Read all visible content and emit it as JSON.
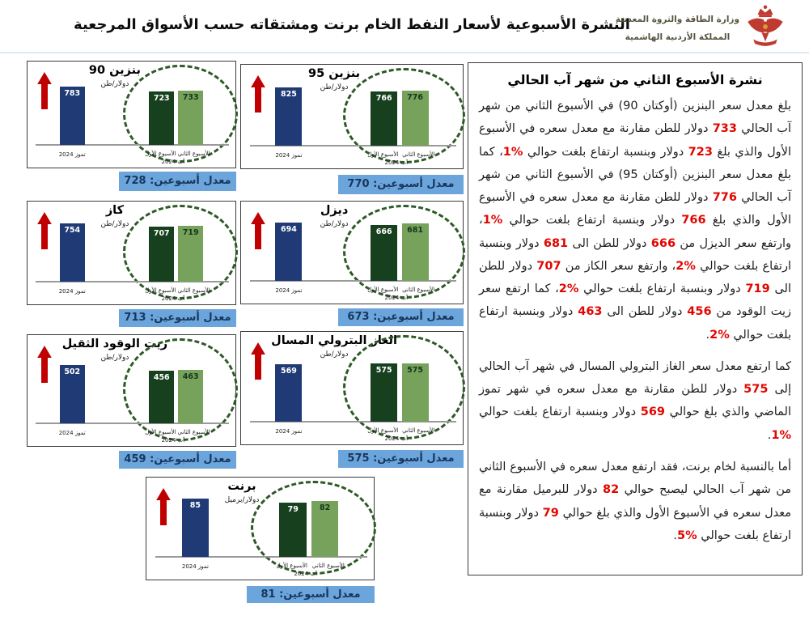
{
  "header": {
    "title": "النشرة الأسبوعية لأسعار النفط الخام برنت ومشتقاته حسب الأسواق المرجعية",
    "logo_line1": "وزارة الطاقة والثروة المعدنية",
    "logo_line2": "المملكة الأردنية الهاشمية"
  },
  "shared_labels": {
    "prev_month": "تموز 2024",
    "current_month": "آب 2024",
    "week1": "الأسبوع الأول",
    "week2": "الأسبوع الثاني",
    "avg_label": "معدل أسبوعين:"
  },
  "panels": [
    {
      "name": "بنزين 90",
      "unit": "دولار/طن",
      "prev": 783,
      "week1": 723,
      "week2": 733,
      "avg": 728
    },
    {
      "name": "بنزين 95",
      "unit": "دولار/طن",
      "prev": 825,
      "week1": 766,
      "week2": 776,
      "avg": 770
    },
    {
      "name": "كاز",
      "unit": "دولار/طن",
      "prev": 754,
      "week1": 707,
      "week2": 719,
      "avg": 713
    },
    {
      "name": "ديزل",
      "unit": "دولار/طن",
      "prev": 694,
      "week1": 666,
      "week2": 681,
      "avg": 673
    },
    {
      "name": "زيت الوقود الثقيل",
      "unit": "دولار/طن",
      "prev": 502,
      "week1": 456,
      "week2": 463,
      "avg": 459
    },
    {
      "name": "الغاز البترولي المسال",
      "unit": "دولار/طن",
      "prev": 569,
      "week1": 575,
      "week2": 575,
      "avg": 575
    },
    {
      "name": "برنت",
      "unit": "دولار/برميل",
      "prev": 85,
      "week1": 79,
      "week2": 82,
      "avg": 81
    }
  ],
  "chart_data": [
    {
      "type": "bar",
      "title": "بنزين 90",
      "ylabel": "دولار/طن",
      "categories": [
        "تموز 2024",
        "الأسبوع الأول آب 2024",
        "الأسبوع الثاني آب 2024"
      ],
      "values": [
        783,
        723,
        733
      ],
      "annotations": [
        "معدل أسبوعين: 728"
      ],
      "legend_position": "none",
      "grid": false
    },
    {
      "type": "bar",
      "title": "بنزين 95",
      "ylabel": "دولار/طن",
      "categories": [
        "تموز 2024",
        "الأسبوع الأول آب 2024",
        "الأسبوع الثاني آب 2024"
      ],
      "values": [
        825,
        766,
        776
      ],
      "annotations": [
        "معدل أسبوعين: 770"
      ],
      "legend_position": "none",
      "grid": false
    },
    {
      "type": "bar",
      "title": "كاز",
      "ylabel": "دولار/طن",
      "categories": [
        "تموز 2024",
        "الأسبوع الأول آب 2024",
        "الأسبوع الثاني آب 2024"
      ],
      "values": [
        754,
        707,
        719
      ],
      "annotations": [
        "معدل أسبوعين: 713"
      ],
      "legend_position": "none",
      "grid": false
    },
    {
      "type": "bar",
      "title": "ديزل",
      "ylabel": "دولار/طن",
      "categories": [
        "تموز 2024",
        "الأسبوع الأول آب 2024",
        "الأسبوع الثاني آب 2024"
      ],
      "values": [
        694,
        666,
        681
      ],
      "annotations": [
        "معدل أسبوعين: 673"
      ],
      "legend_position": "none",
      "grid": false
    },
    {
      "type": "bar",
      "title": "زيت الوقود الثقيل",
      "ylabel": "دولار/طن",
      "categories": [
        "تموز 2024",
        "الأسبوع الأول آب 2024",
        "الأسبوع الثاني آب 2024"
      ],
      "values": [
        502,
        456,
        463
      ],
      "annotations": [
        "معدل أسبوعين: 459"
      ],
      "legend_position": "none",
      "grid": false
    },
    {
      "type": "bar",
      "title": "الغاز البترولي المسال",
      "ylabel": "دولار/طن",
      "categories": [
        "تموز 2024",
        "الأسبوع الأول آب 2024",
        "الأسبوع الثاني آب 2024"
      ],
      "values": [
        569,
        575,
        575
      ],
      "annotations": [
        "معدل أسبوعين: 575"
      ],
      "legend_position": "none",
      "grid": false
    },
    {
      "type": "bar",
      "title": "برنت",
      "ylabel": "دولار/برميل",
      "categories": [
        "تموز 2024",
        "الأسبوع الأول آب 2024",
        "الأسبوع الثاني آب 2024"
      ],
      "values": [
        85,
        79,
        82
      ],
      "annotations": [
        "معدل أسبوعين: 81"
      ],
      "legend_position": "none",
      "grid": false
    }
  ],
  "bulletin": {
    "heading": "نشرة الأسبوع الثاني من شهر آب الحالي",
    "paragraphs": [
      [
        {
          "t": "بلغ معدل سعر البنزين (أوكتان 90) في الأسبوع الثاني من شهر آب الحالي "
        },
        {
          "t": "733",
          "r": true
        },
        {
          "t": " دولار للطن مقارنة مع معدل سعره في الأسبوع الأول والذي بلغ "
        },
        {
          "t": "723",
          "r": true
        },
        {
          "t": " دولار وبنسبة ارتفاع بلغت حوالي "
        },
        {
          "t": "%1",
          "r": true
        },
        {
          "t": "، كما بلغ معدل سعر البنزين (أوكتان 95) في الأسبوع الثاني من شهر آب الحالي "
        },
        {
          "t": "776",
          "r": true
        },
        {
          "t": " دولار للطن مقارنة مع معدل سعره في الأسبوع الأول والذي بلغ "
        },
        {
          "t": "766",
          "r": true
        },
        {
          "t": " دولار وبنسبة ارتفاع بلغت حوالي "
        },
        {
          "t": "%1",
          "r": true
        },
        {
          "t": "، وارتفع سعر الديزل من "
        },
        {
          "t": "666",
          "r": true
        },
        {
          "t": " دولار للطن الى "
        },
        {
          "t": "681",
          "r": true
        },
        {
          "t": " دولار وبنسبة ارتفاع بلغت حوالي "
        },
        {
          "t": "%2",
          "r": true
        },
        {
          "t": "، وارتفع سعر الكاز من "
        },
        {
          "t": "707",
          "r": true
        },
        {
          "t": " دولار للطن الى "
        },
        {
          "t": "719",
          "r": true
        },
        {
          "t": " دولار وبنسبة ارتفاع بلغت حوالي "
        },
        {
          "t": "%2",
          "r": true
        },
        {
          "t": "، كما ارتفع سعر زيت الوقود من "
        },
        {
          "t": "456",
          "r": true
        },
        {
          "t": " دولار للطن الى "
        },
        {
          "t": "463",
          "r": true
        },
        {
          "t": " دولار وبنسبة ارتفاع بلغت حوالي "
        },
        {
          "t": "%2",
          "r": true
        },
        {
          "t": "."
        }
      ],
      [
        {
          "t": "كما ارتفع معدل سعر الغاز البترولي المسال في شهر آب الحالي إلى "
        },
        {
          "t": "575",
          "r": true
        },
        {
          "t": " دولار للطن مقارنة مع معدل سعره في شهر تموز الماضي والذي بلغ حوالي "
        },
        {
          "t": "569",
          "r": true
        },
        {
          "t": " دولار وبنسبة ارتفاع بلغت حوالي "
        },
        {
          "t": "%1",
          "r": true
        },
        {
          "t": "."
        }
      ],
      [
        {
          "t": "أما بالنسبة لخام برنت، فقد ارتفع معدل سعره في الأسبوع الثاني من شهر آب الحالي ليصبح حوالي "
        },
        {
          "t": "82",
          "r": true
        },
        {
          "t": " دولار للبرميل مقارنة مع معدل سعره في الأسبوع الأول والذي بلغ حوالي "
        },
        {
          "t": "79",
          "r": true
        },
        {
          "t": " دولار وبنسبة ارتفاع بلغت حوالي "
        },
        {
          "t": "%5",
          "r": true
        },
        {
          "t": "."
        }
      ]
    ]
  },
  "colors": {
    "prev_bar": "#1F3A75",
    "week1_bar": "#17401E",
    "week2_bar": "#76A25B",
    "banner_bg": "#6CA5DB",
    "banner_text": "#17375E",
    "highlight_red": "#E10600",
    "arrow_red": "#C00000",
    "circle_green": "#2E5A27"
  }
}
